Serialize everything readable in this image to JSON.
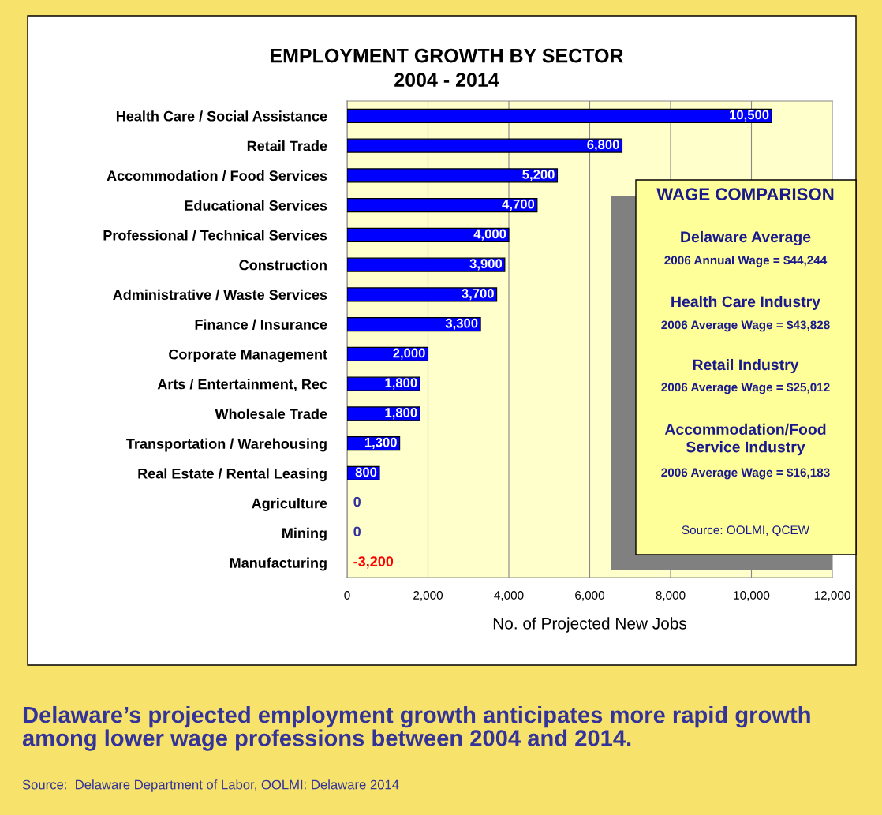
{
  "chart_data": {
    "type": "bar",
    "orientation": "horizontal",
    "title": "EMPLOYMENT GROWTH BY SECTOR\n2004 - 2014",
    "xlabel": "No. of Projected New Jobs",
    "categories": [
      "Health Care / Social Assistance",
      "Retail Trade",
      "Accommodation / Food Services",
      "Educational Services",
      "Professional / Technical Services",
      "Construction",
      "Administrative / Waste Services",
      "Finance / Insurance",
      "Corporate Management",
      "Arts / Entertainment, Rec",
      "Wholesale Trade",
      "Transportation / Warehousing",
      "Real Estate / Rental Leasing",
      "Agriculture",
      "Mining",
      "Manufacturing"
    ],
    "values": [
      10500,
      6800,
      5200,
      4700,
      4000,
      3900,
      3700,
      3300,
      2000,
      1800,
      1800,
      1300,
      800,
      0,
      0,
      null
    ],
    "value_labels": [
      "10,500",
      "6,800",
      "5,200",
      "4,700",
      "4,000",
      "3,900",
      "3,700",
      "3,300",
      "2,000",
      "1,800",
      "1,800",
      "1,300",
      "800",
      "0",
      "0",
      "-3,200"
    ],
    "color": "#0000ff",
    "xlim": [
      0,
      12000
    ],
    "xticks": [
      {
        "value": 0,
        "label": "0"
      },
      {
        "value": 2000,
        "label": "2,000"
      },
      {
        "value": 4000,
        "label": "4,000"
      },
      {
        "value": 6000,
        "label": "6,000"
      },
      {
        "value": 8000,
        "label": "8,000"
      },
      {
        "value": 10000,
        "label": "10,000"
      },
      {
        "value": 12000,
        "label": "12,000"
      }
    ],
    "grid": "x",
    "annotations": [
      "WAGE COMPARISON",
      "Delaware Average",
      "2006 Annual Wage = $44,244",
      "Health Care Industry",
      "2006 Average Wage = $43,828",
      "Retail Industry",
      "2006 Average Wage = $25,012",
      "Accommodation/Food\nService Industry",
      "2006 Average Wage = $16,183",
      "Source: OOLMI, QCEW",
      "Delaware’s projected employment growth anticipates more rapid growth among lower wage professions between 2004 and 2014.",
      "Source:  Delaware Department of Labor, OOLMI: Delaware 2014"
    ]
  }
}
